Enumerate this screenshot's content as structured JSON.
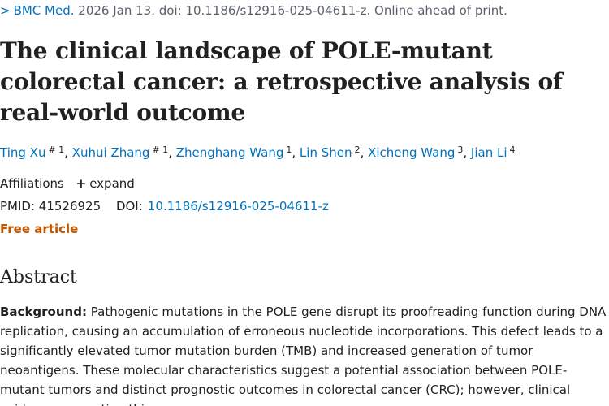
{
  "citation": {
    "chevron": ">",
    "journal": "BMC Med.",
    "details": "2026 Jan 13. doi: 10.1186/s12916-025-04611-z. Online ahead of print."
  },
  "title": "The clinical landscape of POLE-mutant colorectal cancer: a retrospective analysis of real-world outcome",
  "authors": [
    {
      "name": "Ting Xu",
      "sup": "# 1"
    },
    {
      "name": "Xuhui Zhang",
      "sup": "# 1"
    },
    {
      "name": "Zhenghang Wang",
      "sup": "1"
    },
    {
      "name": "Lin Shen",
      "sup": "2"
    },
    {
      "name": "Xicheng Wang",
      "sup": "3"
    },
    {
      "name": "Jian Li",
      "sup": "4"
    }
  ],
  "affiliations": {
    "label": "Affiliations",
    "expand_label": "expand"
  },
  "ids": {
    "pmid_label": "PMID:",
    "pmid": "41526925",
    "doi_label": "DOI:",
    "doi": "10.1186/s12916-025-04611-z"
  },
  "free_article": "Free article",
  "abstract": {
    "heading": "Abstract",
    "background_label": "Background:",
    "background_text": "Pathogenic mutations in the POLE gene disrupt its proofreading function during DNA replication, causing an accumulation of erroneous nucleotide incorporations. This defect leads to a significantly elevated tumor mutation burden (TMB) and increased generation of tumor neoantigens. These molecular characteristics suggest a potential association between POLE-mutant tumors and distinct prognostic outcomes in colorectal cancer (CRC); however, clinical evidence supporting this"
  }
}
